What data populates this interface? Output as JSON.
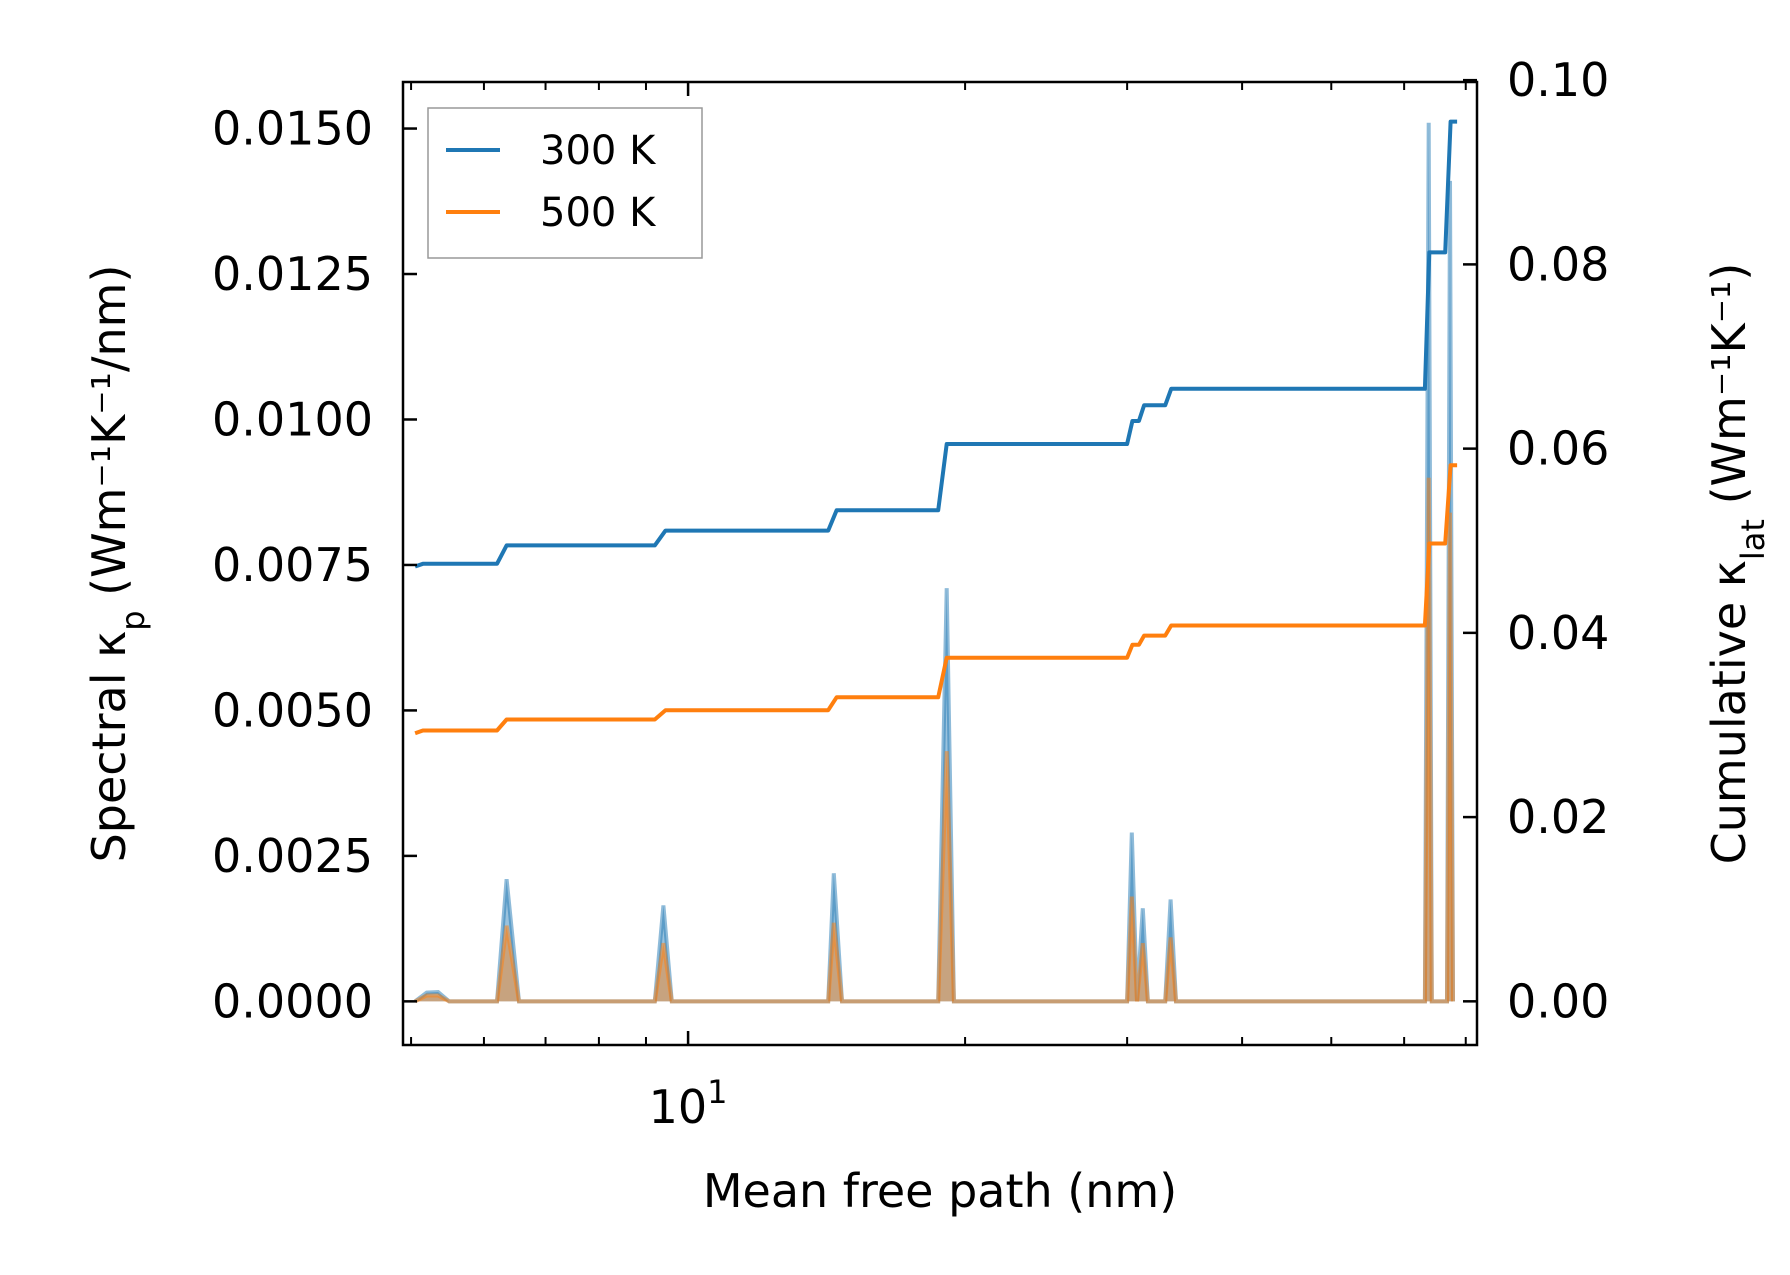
{
  "chart_data": {
    "type": "line",
    "title": "",
    "xlabel": "Mean free path (nm)",
    "xscale": "log",
    "xlim": [
      4.9,
      72
    ],
    "xticks": [
      {
        "value": 10,
        "base": "10",
        "exp": "1"
      }
    ],
    "ylabel_left": {
      "main": "Spectral κ",
      "sub": "p",
      "unit": " (Wm⁻¹K⁻¹/nm)"
    },
    "ylim_left": [
      -0.00075,
      0.0158
    ],
    "yticks_left": [
      "0.0000",
      "0.0025",
      "0.0050",
      "0.0075",
      "0.0100",
      "0.0125",
      "0.0150"
    ],
    "ylabel_right": {
      "main": "Cumulative κ",
      "sub": "lat",
      "unit": " (Wm⁻¹K⁻¹)"
    },
    "ylim_right": [
      -0.00474,
      0.0998
    ],
    "yticks_right": [
      "0.00",
      "0.02",
      "0.04",
      "0.06",
      "0.08",
      "0.10"
    ],
    "legend": {
      "position": "top-left",
      "entries": [
        "300 K",
        "500 K"
      ]
    },
    "series": [
      {
        "name": "300 K",
        "color": "#1f77b4",
        "axis": "right",
        "cumulative": [
          [
            5.05,
            0.0472
          ],
          [
            5.15,
            0.0475
          ],
          [
            5.25,
            0.0475
          ],
          [
            6.2,
            0.0475
          ],
          [
            6.35,
            0.0495
          ],
          [
            6.6,
            0.0495
          ],
          [
            9.2,
            0.0495
          ],
          [
            9.45,
            0.0511
          ],
          [
            9.7,
            0.0511
          ],
          [
            14.2,
            0.0511
          ],
          [
            14.5,
            0.0533
          ],
          [
            14.9,
            0.0533
          ],
          [
            18.7,
            0.0533
          ],
          [
            19.1,
            0.0605
          ],
          [
            19.5,
            0.0605
          ],
          [
            30.0,
            0.0605
          ],
          [
            30.4,
            0.063
          ],
          [
            30.9,
            0.063
          ],
          [
            31.3,
            0.0647
          ],
          [
            33.0,
            0.0647
          ],
          [
            33.5,
            0.0665
          ],
          [
            34.3,
            0.0665
          ],
          [
            63.2,
            0.0665
          ],
          [
            63.9,
            0.0813
          ],
          [
            66.5,
            0.0813
          ],
          [
            67.4,
            0.0955
          ],
          [
            68.5,
            0.0955
          ]
        ],
        "spectral": [
          [
            5.05,
            0.0
          ],
          [
            5.2,
            0.00015
          ],
          [
            5.35,
            0.00016
          ],
          [
            5.5,
            0.0
          ],
          [
            6.2,
            0.0
          ],
          [
            6.35,
            0.0021
          ],
          [
            6.55,
            0.0
          ],
          [
            9.2,
            0.0
          ],
          [
            9.4,
            0.00165
          ],
          [
            9.6,
            0.0
          ],
          [
            14.2,
            0.0
          ],
          [
            14.4,
            0.0022
          ],
          [
            14.7,
            0.0
          ],
          [
            18.7,
            0.0
          ],
          [
            19.1,
            0.0071
          ],
          [
            19.45,
            0.0
          ],
          [
            30.0,
            0.0
          ],
          [
            30.35,
            0.0029
          ],
          [
            30.75,
            0.0
          ],
          [
            31.2,
            0.0016
          ],
          [
            31.6,
            0.0
          ],
          [
            33.0,
            0.0
          ],
          [
            33.45,
            0.00175
          ],
          [
            33.9,
            0.0
          ],
          [
            63.2,
            0.0
          ],
          [
            63.8,
            0.0151
          ],
          [
            64.3,
            0.0
          ],
          [
            66.8,
            0.0
          ],
          [
            67.3,
            0.0141
          ],
          [
            67.8,
            0.0
          ]
        ]
      },
      {
        "name": "500 K",
        "color": "#ff7f0e",
        "axis": "right",
        "cumulative": [
          [
            5.05,
            0.0291
          ],
          [
            5.15,
            0.0294
          ],
          [
            5.25,
            0.0294
          ],
          [
            6.2,
            0.0294
          ],
          [
            6.35,
            0.0306
          ],
          [
            6.6,
            0.0306
          ],
          [
            9.2,
            0.0306
          ],
          [
            9.45,
            0.0316
          ],
          [
            9.7,
            0.0316
          ],
          [
            14.2,
            0.0316
          ],
          [
            14.5,
            0.033
          ],
          [
            14.9,
            0.033
          ],
          [
            18.7,
            0.033
          ],
          [
            19.1,
            0.0373
          ],
          [
            19.5,
            0.0373
          ],
          [
            30.0,
            0.0373
          ],
          [
            30.4,
            0.0387
          ],
          [
            30.9,
            0.0387
          ],
          [
            31.3,
            0.0397
          ],
          [
            33.0,
            0.0397
          ],
          [
            33.5,
            0.0408
          ],
          [
            34.3,
            0.0408
          ],
          [
            63.2,
            0.0408
          ],
          [
            63.9,
            0.0497
          ],
          [
            66.5,
            0.0497
          ],
          [
            67.4,
            0.0582
          ],
          [
            68.5,
            0.0582
          ]
        ],
        "spectral": [
          [
            5.05,
            0.0
          ],
          [
            5.2,
            0.0001
          ],
          [
            5.35,
            0.0001
          ],
          [
            5.5,
            0.0
          ],
          [
            6.2,
            0.0
          ],
          [
            6.35,
            0.0013
          ],
          [
            6.55,
            0.0
          ],
          [
            9.2,
            0.0
          ],
          [
            9.4,
            0.001
          ],
          [
            9.6,
            0.0
          ],
          [
            14.2,
            0.0
          ],
          [
            14.4,
            0.00135
          ],
          [
            14.7,
            0.0
          ],
          [
            18.7,
            0.0
          ],
          [
            19.1,
            0.0043
          ],
          [
            19.45,
            0.0
          ],
          [
            30.0,
            0.0
          ],
          [
            30.35,
            0.0018
          ],
          [
            30.75,
            0.0
          ],
          [
            31.2,
            0.001
          ],
          [
            31.6,
            0.0
          ],
          [
            33.0,
            0.0
          ],
          [
            33.45,
            0.0011
          ],
          [
            33.9,
            0.0
          ],
          [
            63.2,
            0.0
          ],
          [
            63.8,
            0.009
          ],
          [
            64.3,
            0.0
          ],
          [
            66.8,
            0.0
          ],
          [
            67.3,
            0.0084
          ],
          [
            67.8,
            0.0
          ]
        ]
      }
    ]
  }
}
